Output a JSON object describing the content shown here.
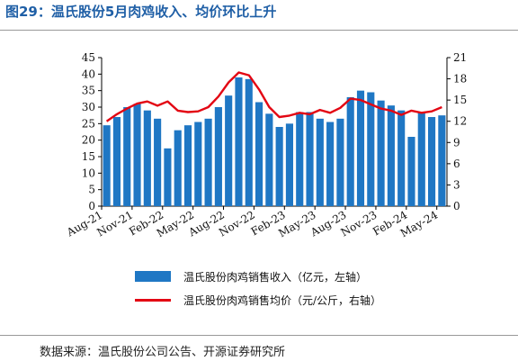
{
  "title": "图29：温氏股份5月肉鸡收入、均价环比上升",
  "source": "数据来源：温氏股份公司公告、开源证券研究所",
  "colors": {
    "bar": "#1F77C4",
    "line": "#E30613",
    "title": "#1F5FA6"
  },
  "chart_data": {
    "type": "bar+line",
    "grid": false,
    "legend_position": "bottom",
    "x": [
      "Aug-21",
      "Sep-21",
      "Oct-21",
      "Nov-21",
      "Dec-21",
      "Jan-22",
      "Feb-22",
      "Mar-22",
      "Apr-22",
      "May-22",
      "Jun-22",
      "Jul-22",
      "Aug-22",
      "Sep-22",
      "Oct-22",
      "Nov-22",
      "Dec-22",
      "Jan-23",
      "Feb-23",
      "Mar-23",
      "Apr-23",
      "May-23",
      "Jun-23",
      "Jul-23",
      "Aug-23",
      "Sep-23",
      "Oct-23",
      "Nov-23",
      "Dec-23",
      "Jan-24",
      "Feb-24",
      "Mar-24",
      "Apr-24",
      "May-24"
    ],
    "xtick_labels": [
      "Aug-21",
      "Nov-21",
      "Feb-22",
      "May-22",
      "Aug-22",
      "Nov-22",
      "Feb-23",
      "May-23",
      "Aug-23",
      "Nov-23",
      "Feb-24",
      "May-24"
    ],
    "y_left": {
      "ylim": [
        0,
        45
      ],
      "ticks": [
        0,
        5,
        10,
        15,
        20,
        25,
        30,
        35,
        40,
        45
      ]
    },
    "y_right": {
      "ylim": [
        0,
        21
      ],
      "ticks": [
        0,
        3,
        6,
        9,
        12,
        15,
        18,
        21
      ]
    },
    "series": [
      {
        "name": "温氏股份肉鸡销售收入（亿元，左轴）",
        "type": "bar",
        "axis": "left",
        "values": [
          24.5,
          27,
          30,
          31,
          29,
          26.5,
          17.5,
          23,
          24.5,
          25.5,
          26.5,
          30,
          33.5,
          39,
          38.5,
          31.5,
          28,
          24,
          25,
          28.5,
          28.5,
          26.5,
          25.5,
          26.5,
          33,
          35,
          34.5,
          32,
          30.5,
          29,
          21,
          28.5,
          27,
          27.5
        ]
      },
      {
        "name": "温氏股份肉鸡销售均价（元/公斤，右轴）",
        "type": "line",
        "axis": "right",
        "values": [
          12.0,
          13.0,
          13.8,
          14.5,
          14.8,
          14.2,
          14.8,
          13.5,
          13.3,
          13.4,
          14.0,
          15.5,
          17.5,
          18.9,
          18.5,
          16.5,
          14.0,
          12.6,
          12.8,
          13.2,
          13.0,
          13.6,
          13.2,
          13.9,
          15.2,
          15.0,
          14.4,
          13.8,
          13.5,
          12.9,
          13.5,
          13.2,
          13.4,
          14.0
        ]
      }
    ]
  }
}
